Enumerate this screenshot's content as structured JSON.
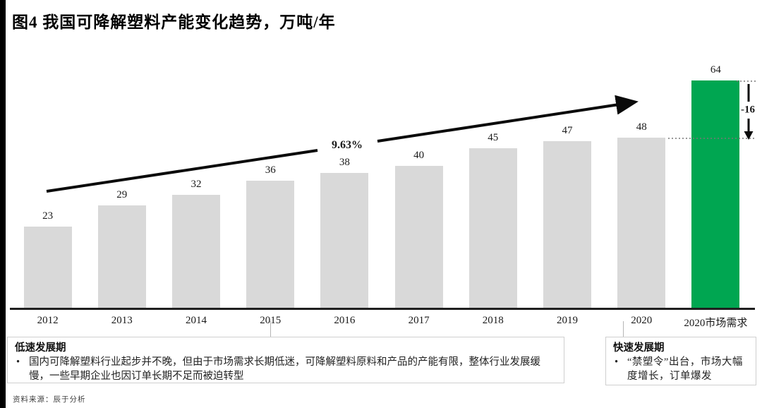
{
  "title": "图4 我国可降解塑料产能变化趋势，万吨/年",
  "chart_data": {
    "type": "bar",
    "title": "我国可降解塑料产能变化趋势",
    "unit_label": "万吨/年",
    "categories": [
      "2012",
      "2013",
      "2014",
      "2015",
      "2016",
      "2017",
      "2018",
      "2019",
      "2020",
      "2020市场需求"
    ],
    "values": [
      23,
      29,
      32,
      36,
      38,
      40,
      45,
      47,
      48,
      64
    ],
    "highlight_index": 9,
    "ylim": [
      0,
      70
    ],
    "grid": false,
    "legend": false,
    "annotations": {
      "cagr_label": "9.63%",
      "gap_label": "-16",
      "gap_between": [
        "2020",
        "2020市场需求"
      ]
    }
  },
  "colors": {
    "bar": "#d9d9d9",
    "highlight": "#00a651",
    "axis": "#1f1f1f",
    "arrow": "#0a0a0a"
  },
  "phases": {
    "left": {
      "title": "低速发展期",
      "bullet_marker": "•",
      "bullet": "国内可降解塑料行业起步并不晚，但由于市场需求长期低迷，可降解塑料原料和产品的产能有限，整体行业发展缓慢，一些早期企业也因订单长期不足而被迫转型"
    },
    "right": {
      "title": "快速发展期",
      "bullet_marker": "•",
      "bullet": "“禁塑令”出台，市场大幅度增长，订单爆发"
    }
  },
  "source": "资料来源：辰于分析"
}
